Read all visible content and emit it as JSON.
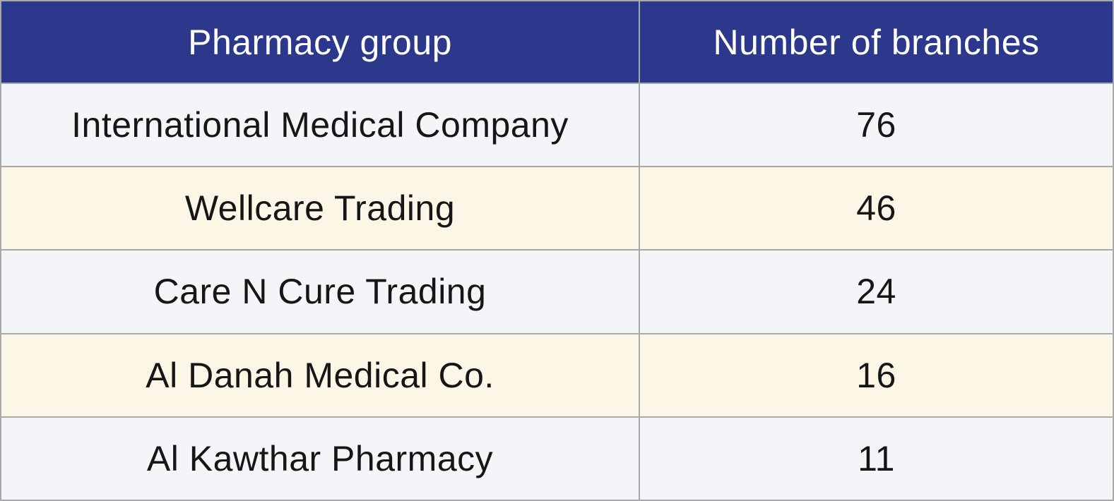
{
  "table": {
    "headers": [
      "Pharmacy group",
      "Number of branches"
    ],
    "rows": [
      {
        "group": "International Medical Company",
        "branches": "76"
      },
      {
        "group": "Wellcare Trading",
        "branches": "46"
      },
      {
        "group": "Care N Cure Trading",
        "branches": "24"
      },
      {
        "group": "Al Danah Medical Co.",
        "branches": "16"
      },
      {
        "group": "Al Kawthar Pharmacy",
        "branches": "11"
      }
    ]
  },
  "chart_data": {
    "type": "table",
    "columns": [
      "Pharmacy group",
      "Number of branches"
    ],
    "rows": [
      [
        "International Medical Company",
        76
      ],
      [
        "Wellcare Trading",
        46
      ],
      [
        "Care N Cure Trading",
        24
      ],
      [
        "Al Danah Medical Co.",
        16
      ],
      [
        "Al Kawthar Pharmacy",
        11
      ]
    ],
    "title": "",
    "legend": false,
    "grid": true
  },
  "colors": {
    "header_bg": "#2b388c",
    "header_text": "#ffffff",
    "row_light_bg": "#f4f5f8",
    "row_cream_bg": "#fbf6e6",
    "border": "#a9a9a9",
    "body_text": "#161616"
  }
}
